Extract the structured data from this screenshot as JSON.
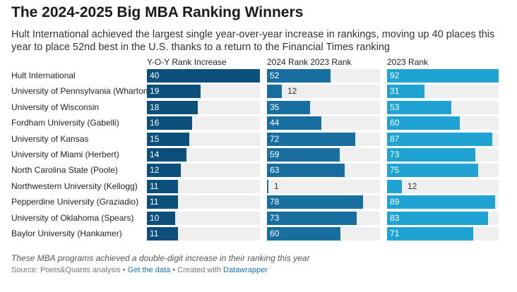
{
  "title": "The 2024-2025 Big MBA Ranking Winners",
  "subtitle": "Hult International achieved the largest single year-over-year increase in rankings, moving up 40 places this year to place 52nd best in the U.S. thanks to a return to the Financial Times ranking",
  "note": "These MBA programs achieved a double-digit increase in their ranking this year",
  "source": {
    "prefix": "Source: Poets&Quants analysis",
    "sep1": " • ",
    "data_link": "Get the data",
    "sep2": " • Created with ",
    "tool_link": "Datawrapper"
  },
  "chart_data": {
    "type": "bar",
    "categories": [
      "Hult International",
      "University of Pennsylvania (Wharton)",
      "University of Wisconsin",
      "Fordham University (Gabelli)",
      "University of Kansas",
      "University of Miami (Herbert)",
      "North Carolina State (Poole)",
      "Northwestern University (Kellogg)",
      "Pepperdine University (Graziadio)",
      "University of Oklahoma (Spears)",
      "Baylor University (Hankamer)"
    ],
    "series": [
      {
        "name": "Y-O-Y Rank Increase",
        "color": "#0b4f7a",
        "max": 40,
        "values": [
          40,
          19,
          18,
          16,
          15,
          14,
          12,
          11,
          11,
          10,
          11
        ]
      },
      {
        "name": "2024 Rank 2023 Rank",
        "color": "#176e9f",
        "max": 92,
        "values": [
          52,
          12,
          35,
          44,
          72,
          59,
          63,
          1,
          78,
          73,
          60
        ]
      },
      {
        "name": "2023 Rank",
        "color": "#1fa3d3",
        "max": 92,
        "values": [
          92,
          31,
          53,
          60,
          87,
          73,
          75,
          12,
          89,
          83,
          71
        ]
      }
    ]
  }
}
